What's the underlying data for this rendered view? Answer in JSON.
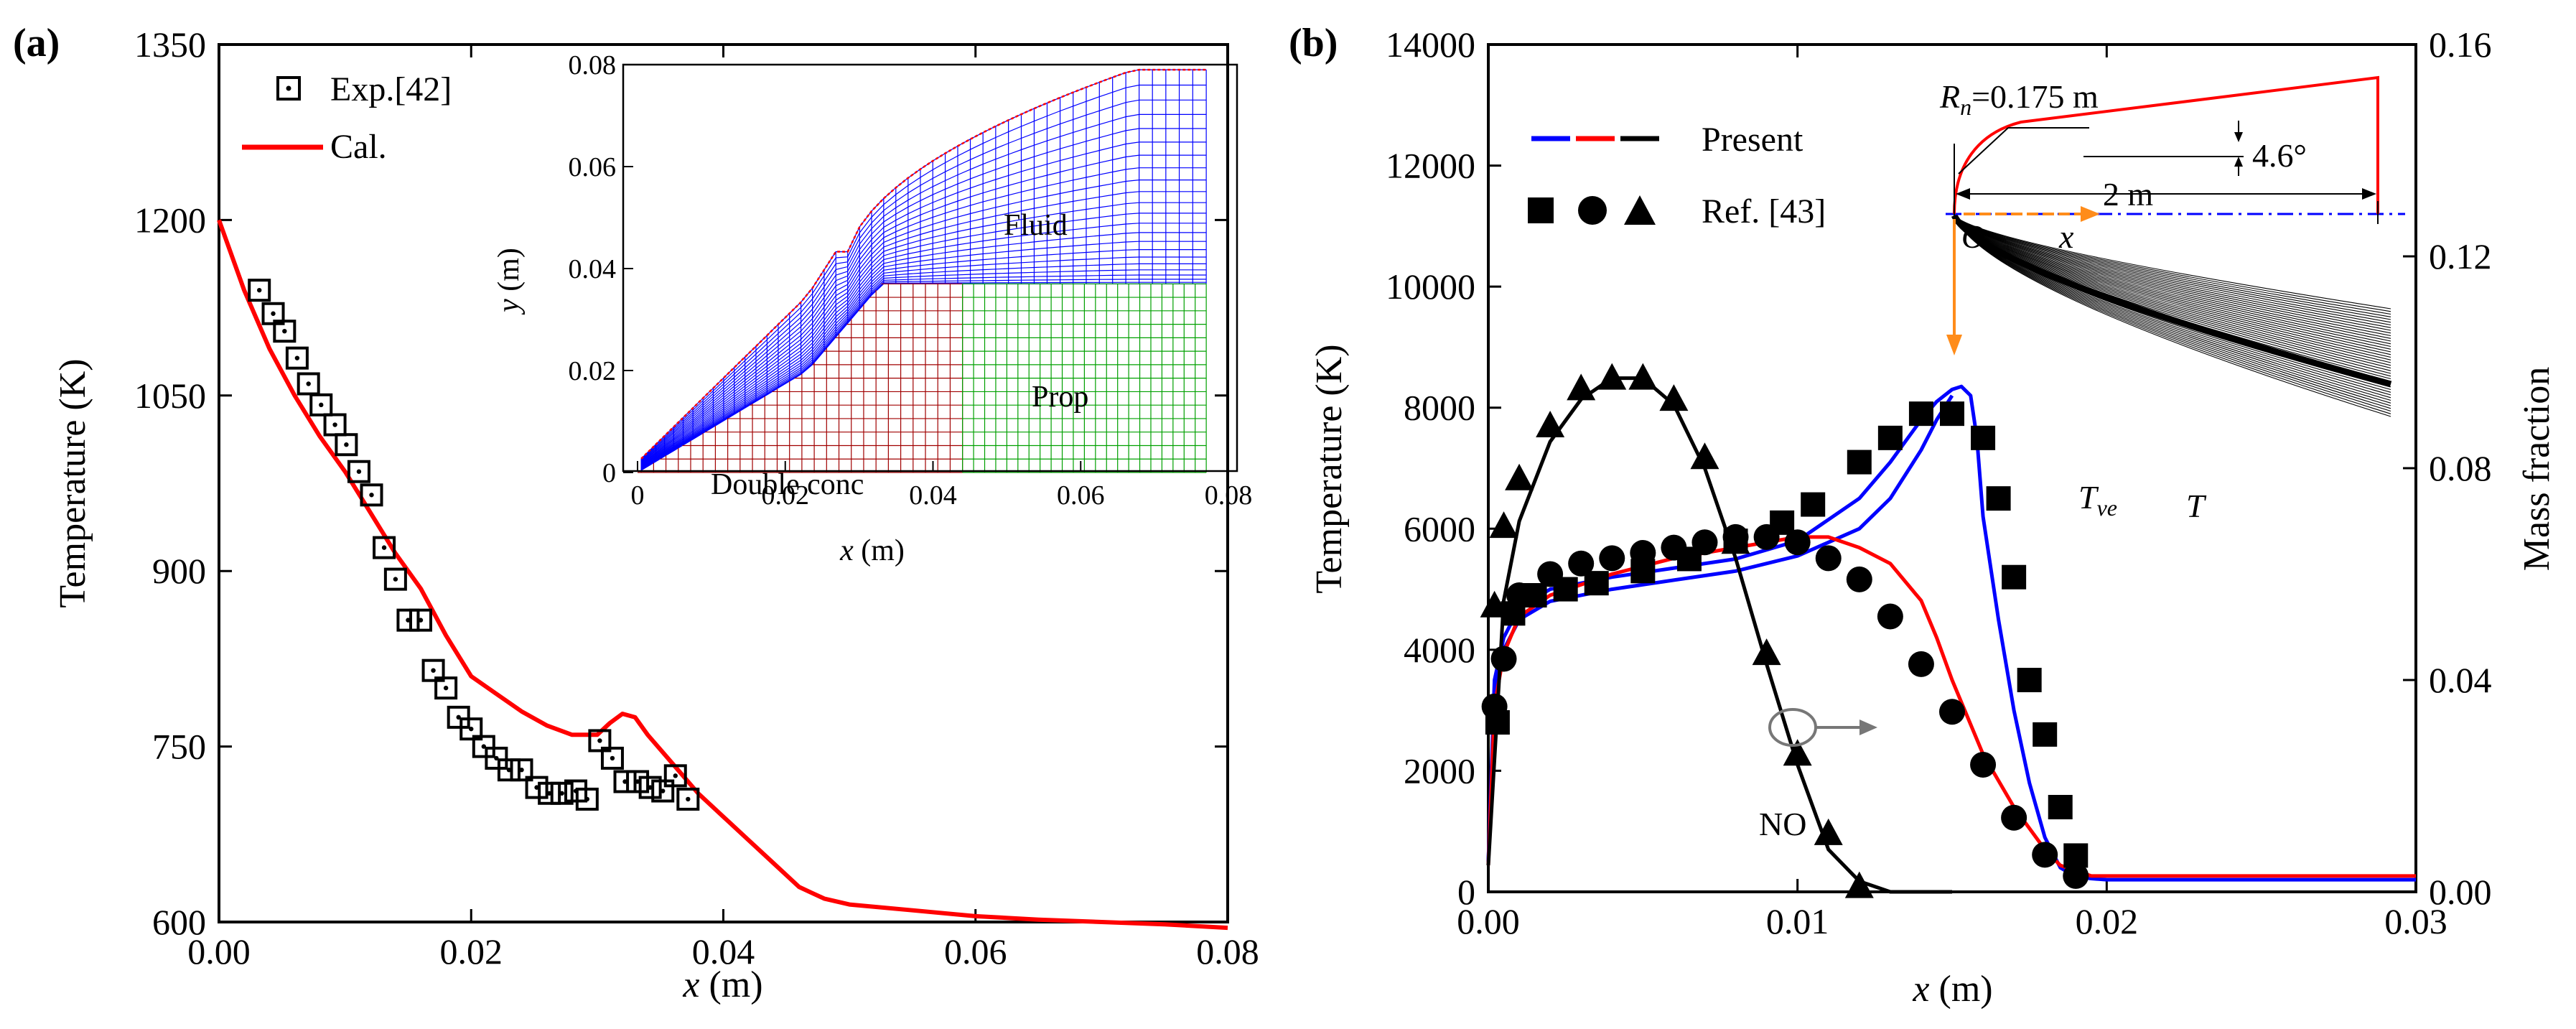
{
  "chart_data": [
    {
      "panel": "(a)",
      "type": "line",
      "title": "",
      "xlabel_var": "x",
      "xlabel_unit": " (m)",
      "ylabel": "Temperature (K)",
      "xlim": [
        0,
        0.08
      ],
      "ylim": [
        600,
        1350
      ],
      "xticks": [
        0,
        0.02,
        0.04,
        0.06,
        0.08
      ],
      "xtick_labels": [
        "0.00",
        "0.02",
        "0.04",
        "0.06",
        "0.08"
      ],
      "yticks": [
        600,
        750,
        900,
        1050,
        1200,
        1350
      ],
      "ytick_labels": [
        "600",
        "750",
        "900",
        "1050",
        "1200",
        "1350"
      ],
      "legend": [
        "Exp.[42]",
        "Cal."
      ],
      "series": [
        {
          "name": "Exp.[42]",
          "kind": "scatter",
          "marker": "square-dot",
          "color": "#000000",
          "x": [
            0.0032,
            0.0043,
            0.0052,
            0.0062,
            0.0071,
            0.0081,
            0.0092,
            0.0101,
            0.0111,
            0.0121,
            0.0131,
            0.014,
            0.015,
            0.016,
            0.017,
            0.018,
            0.019,
            0.02,
            0.021,
            0.022,
            0.023,
            0.024,
            0.0252,
            0.0262,
            0.0272,
            0.0283,
            0.0292,
            0.0302,
            0.0312,
            0.0322,
            0.0332,
            0.0342,
            0.0352,
            0.0362,
            0.0372
          ],
          "y": [
            1140,
            1120,
            1105,
            1082,
            1060,
            1042,
            1025,
            1008,
            985,
            965,
            920,
            893,
            858,
            858,
            815,
            800,
            775,
            765,
            750,
            740,
            730,
            730,
            715,
            710,
            710,
            712,
            705,
            755,
            740,
            720,
            720,
            715,
            712,
            725,
            705
          ]
        },
        {
          "name": "Cal.",
          "kind": "line",
          "color": "#ff0000",
          "x": [
            0,
            0.002,
            0.004,
            0.006,
            0.008,
            0.01,
            0.012,
            0.014,
            0.016,
            0.018,
            0.02,
            0.022,
            0.024,
            0.026,
            0.028,
            0.03,
            0.031,
            0.032,
            0.033,
            0.034,
            0.036,
            0.038,
            0.04,
            0.042,
            0.044,
            0.046,
            0.047,
            0.048,
            0.05,
            0.055,
            0.06,
            0.065,
            0.07,
            0.075,
            0.08
          ],
          "y": [
            1200,
            1140,
            1090,
            1050,
            1015,
            985,
            950,
            915,
            885,
            845,
            810,
            795,
            780,
            768,
            760,
            760,
            770,
            778,
            775,
            760,
            735,
            710,
            690,
            670,
            650,
            630,
            625,
            620,
            615,
            610,
            605,
            602,
            600,
            598,
            595
          ]
        }
      ],
      "inset": {
        "xlabel_var": "x",
        "xlabel_unit": " (m)",
        "ylabel_var": "y",
        "ylabel_unit": " (m)",
        "xlim": [
          0,
          0.08
        ],
        "ylim": [
          0,
          0.08
        ],
        "xticks": [
          0,
          0.02,
          0.04,
          0.06,
          0.08
        ],
        "xtick_labels": [
          "0",
          "0.02",
          "0.04",
          "0.06",
          "0.08"
        ],
        "yticks": [
          0,
          0.02,
          0.04,
          0.06,
          0.08
        ],
        "ytick_labels": [
          "0",
          "0.02",
          "0.04",
          "0.06",
          "0.08"
        ],
        "labels": [
          "Fluid",
          "Double conc",
          "Prop"
        ],
        "colors": {
          "fluid": "#0000ff",
          "cone": "#a00000",
          "prop": "#00a000",
          "shock": "#ff0000"
        }
      }
    },
    {
      "panel": "(b)",
      "type": "line",
      "title": "",
      "xlabel_var": "x",
      "xlabel_unit": " (m)",
      "ylabel": "Temperature (K)",
      "y2label": "Mass fraction",
      "xlim": [
        0,
        0.03
      ],
      "ylim": [
        0,
        14000
      ],
      "y2lim": [
        0,
        0.16
      ],
      "xticks": [
        0,
        0.01,
        0.02,
        0.03
      ],
      "xtick_labels": [
        "0.00",
        "0.01",
        "0.02",
        "0.03"
      ],
      "yticks": [
        0,
        2000,
        4000,
        6000,
        8000,
        10000,
        12000,
        14000
      ],
      "ytick_labels": [
        "0",
        "2000",
        "4000",
        "6000",
        "8000",
        "10000",
        "12000",
        "14000"
      ],
      "y2ticks": [
        0,
        0.04,
        0.08,
        0.12,
        0.16
      ],
      "y2tick_labels": [
        "0.00",
        "0.04",
        "0.08",
        "0.12",
        "0.16"
      ],
      "legend": [
        "Present",
        "Ref. [43]"
      ],
      "series": [
        {
          "name": "T (Present)",
          "kind": "line",
          "color": "#0000ff",
          "axis": "left",
          "x": [
            0,
            0.0002,
            0.0005,
            0.001,
            0.002,
            0.004,
            0.006,
            0.008,
            0.01,
            0.012,
            0.013,
            0.014,
            0.0145,
            0.015,
            0.0153,
            0.0156,
            0.0158,
            0.016,
            0.0165,
            0.017,
            0.0175,
            0.018,
            0.0185,
            0.019,
            0.0195,
            0.02,
            0.025,
            0.03
          ],
          "y": [
            500,
            3500,
            4200,
            4700,
            5000,
            5200,
            5350,
            5500,
            5800,
            6500,
            7100,
            7800,
            8100,
            8300,
            8350,
            8200,
            7500,
            6200,
            4500,
            3000,
            1800,
            900,
            400,
            250,
            220,
            200,
            200,
            200
          ]
        },
        {
          "name": "Tve (Present)",
          "kind": "line",
          "color": "#0000ff",
          "axis": "left",
          "x": [
            0,
            0.0002,
            0.0005,
            0.001,
            0.002,
            0.004,
            0.006,
            0.008,
            0.01,
            0.012,
            0.013,
            0.014,
            0.0145,
            0.015
          ],
          "y": [
            500,
            3300,
            4000,
            4500,
            4800,
            5000,
            5150,
            5300,
            5550,
            6000,
            6500,
            7300,
            7800,
            8200
          ]
        },
        {
          "name": "Mass fraction (Present)",
          "kind": "line",
          "color": "#ff0000",
          "axis": "right",
          "x": [
            0,
            0.0002,
            0.0005,
            0.001,
            0.002,
            0.004,
            0.006,
            0.008,
            0.01,
            0.011,
            0.012,
            0.013,
            0.014,
            0.0145,
            0.015,
            0.016,
            0.017,
            0.018,
            0.0185,
            0.019,
            0.0195,
            0.02,
            0.025,
            0.03
          ],
          "y": [
            0.005,
            0.035,
            0.045,
            0.052,
            0.056,
            0.06,
            0.063,
            0.065,
            0.067,
            0.067,
            0.065,
            0.062,
            0.055,
            0.048,
            0.04,
            0.026,
            0.016,
            0.008,
            0.005,
            0.004,
            0.003,
            0.003,
            0.003,
            0.003
          ]
        },
        {
          "name": "NO (Present)",
          "kind": "line",
          "color": "#000000",
          "axis": "right",
          "x": [
            0,
            0.0005,
            0.001,
            0.002,
            0.003,
            0.004,
            0.005,
            0.006,
            0.007,
            0.008,
            0.009,
            0.01,
            0.011,
            0.012,
            0.013,
            0.014,
            0.015
          ],
          "y": [
            0.005,
            0.055,
            0.07,
            0.085,
            0.093,
            0.097,
            0.097,
            0.092,
            0.08,
            0.063,
            0.043,
            0.024,
            0.008,
            0.002,
            0.0,
            0.0,
            0.0
          ]
        },
        {
          "name": "T (Ref. [43])",
          "kind": "scatter",
          "marker": "square",
          "color": "#000000",
          "axis": "left",
          "x": [
            0.0003,
            0.0008,
            0.0015,
            0.0025,
            0.0035,
            0.005,
            0.0065,
            0.008,
            0.0095,
            0.0105,
            0.012,
            0.013,
            0.014,
            0.015,
            0.016,
            0.0165,
            0.017,
            0.0175,
            0.018,
            0.0185,
            0.019
          ],
          "y": [
            2800,
            4600,
            4900,
            5000,
            5100,
            5300,
            5500,
            5800,
            6100,
            6400,
            7100,
            7500,
            7900,
            7900,
            7500,
            6500,
            5200,
            3500,
            2600,
            1400,
            600
          ]
        },
        {
          "name": "Mass fraction (Ref. [43])",
          "kind": "scatter",
          "marker": "circle",
          "color": "#000000",
          "axis": "right",
          "x": [
            0.0002,
            0.0005,
            0.001,
            0.002,
            0.003,
            0.004,
            0.005,
            0.006,
            0.007,
            0.008,
            0.009,
            0.01,
            0.011,
            0.012,
            0.013,
            0.014,
            0.015,
            0.016,
            0.017,
            0.018,
            0.019
          ],
          "y": [
            0.035,
            0.044,
            0.056,
            0.06,
            0.062,
            0.063,
            0.064,
            0.065,
            0.066,
            0.067,
            0.067,
            0.066,
            0.063,
            0.059,
            0.052,
            0.043,
            0.034,
            0.024,
            0.014,
            0.007,
            0.003
          ]
        },
        {
          "name": "NO (Ref. [43])",
          "kind": "scatter",
          "marker": "triangle",
          "color": "#000000",
          "axis": "right",
          "x": [
            0.0002,
            0.0005,
            0.001,
            0.002,
            0.003,
            0.004,
            0.005,
            0.006,
            0.007,
            0.008,
            0.009,
            0.01,
            0.011,
            0.012
          ],
          "y": [
            0.054,
            0.069,
            0.078,
            0.088,
            0.095,
            0.097,
            0.097,
            0.093,
            0.082,
            0.066,
            0.045,
            0.026,
            0.011,
            0.001
          ]
        }
      ],
      "annotations": {
        "T_label": "T",
        "Tve_label_main": "T",
        "Tve_label_sub": "ve",
        "NO_label": "NO",
        "Rn_label_var": "R",
        "Rn_label_sub": "n",
        "Rn_label_value": "=0.175 m",
        "angle_label": "4.6°",
        "length_label": "2 m",
        "origin_label": "O",
        "x_label": "x"
      }
    }
  ]
}
